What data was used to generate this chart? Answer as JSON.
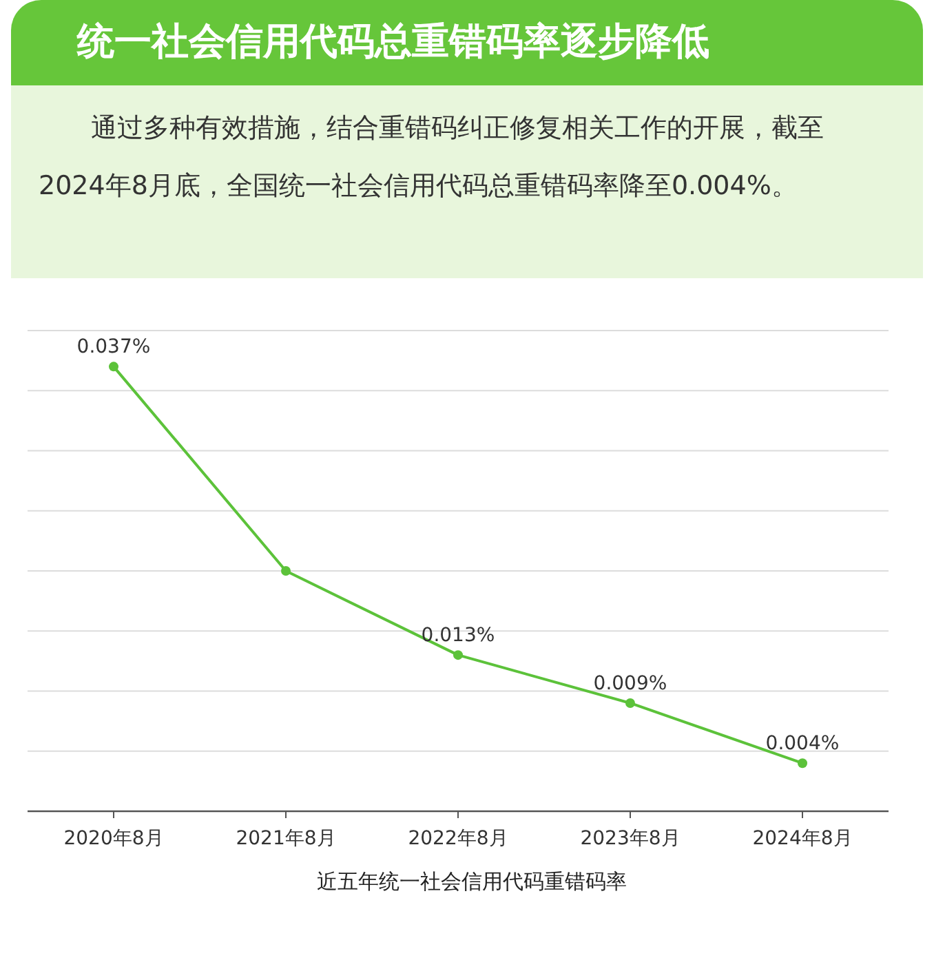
{
  "chart_data": {
    "type": "line",
    "title": "统一社会信用代码总重错码率逐步降低",
    "subtitle": "通过多种有效措施，结合重错码纠正修复相关工作的开展，截至2024年8月底，全国统一社会信用代码总重错码率降至0.004%。",
    "xlabel": "近五年统一社会信用代码重错码率",
    "categories": [
      "2020年8月",
      "2021年8月",
      "2022年8月",
      "2023年8月",
      "2024年8月"
    ],
    "series": [
      {
        "color": "#5cc23a",
        "values": [
          0.037,
          0.02,
          0.013,
          0.009,
          0.004
        ],
        "value_labels": [
          "0.037%",
          null,
          "0.013%",
          "0.009%",
          "0.004%"
        ]
      }
    ],
    "ylim": [
      0,
      0.04
    ],
    "yticks": [
      {
        "value": 0,
        "label": null
      },
      {
        "value": 0.005,
        "label": null
      },
      {
        "value": 0.01,
        "label": null
      },
      {
        "value": 0.015,
        "label": null
      },
      {
        "value": 0.02,
        "label": null
      },
      {
        "value": 0.025,
        "label": null
      },
      {
        "value": 0.03,
        "label": null
      },
      {
        "value": 0.035,
        "label": null
      },
      {
        "value": 0.04,
        "label": null
      }
    ],
    "grid": "y",
    "marker": "circle",
    "line_style": "solid"
  }
}
